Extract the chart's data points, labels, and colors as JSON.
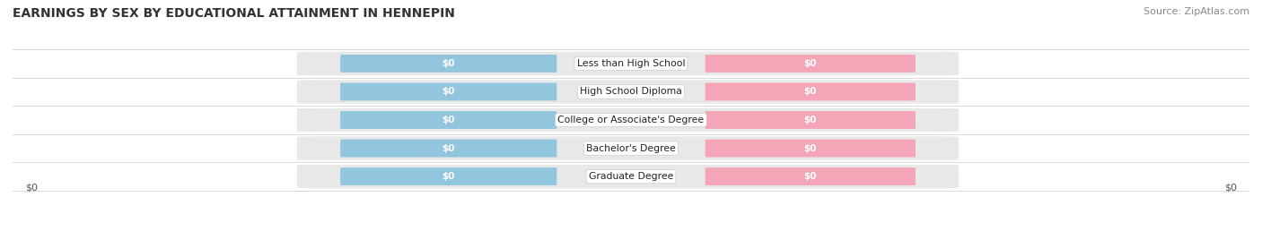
{
  "title": "EARNINGS BY SEX BY EDUCATIONAL ATTAINMENT IN HENNEPIN",
  "source": "Source: ZipAtlas.com",
  "categories": [
    "Less than High School",
    "High School Diploma",
    "College or Associate's Degree",
    "Bachelor's Degree",
    "Graduate Degree"
  ],
  "male_color": "#92c5de",
  "female_color": "#f4a6b8",
  "row_bg_color": "#e8e8e8",
  "bar_label": "$0",
  "axis_label": "$0",
  "title_fontsize": 10,
  "source_fontsize": 8,
  "figsize": [
    14.06,
    2.68
  ],
  "dpi": 100
}
